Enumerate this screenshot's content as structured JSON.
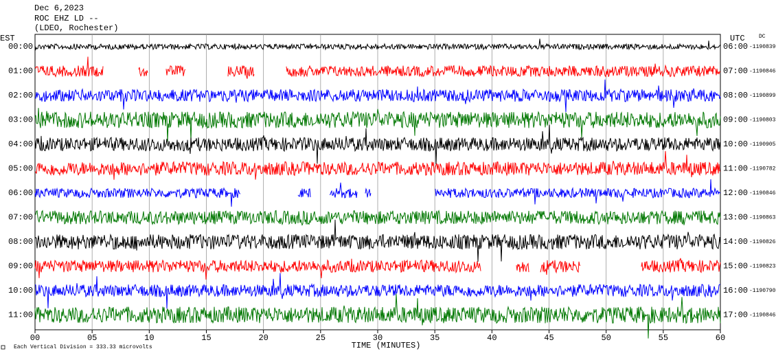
{
  "header": {
    "date": "Dec 6,2023",
    "station": "ROC EHZ LD --",
    "network": "(LDEO, Rochester)"
  },
  "left_zone": "EST",
  "right_zone": "UTC",
  "dc_label": "DC",
  "rows": [
    {
      "est": "00:00",
      "utc": "06:00",
      "offset": "-1190839"
    },
    {
      "est": "01:00",
      "utc": "07:00",
      "offset": "-1190846"
    },
    {
      "est": "02:00",
      "utc": "08:00",
      "offset": "-1190899"
    },
    {
      "est": "03:00",
      "utc": "09:00",
      "offset": "-1190803"
    },
    {
      "est": "04:00",
      "utc": "10:00",
      "offset": "-1190905"
    },
    {
      "est": "05:00",
      "utc": "11:00",
      "offset": "-1190782"
    },
    {
      "est": "06:00",
      "utc": "12:00",
      "offset": "-1190846"
    },
    {
      "est": "07:00",
      "utc": "13:00",
      "offset": "-1190863"
    },
    {
      "est": "08:00",
      "utc": "14:00",
      "offset": "-1190826"
    },
    {
      "est": "09:00",
      "utc": "15:00",
      "offset": "-1190823"
    },
    {
      "est": "10:00",
      "utc": "16:00",
      "offset": "-1190790"
    },
    {
      "est": "11:00",
      "utc": "17:00",
      "offset": "-1190846"
    }
  ],
  "x_ticks": [
    "00",
    "05",
    "10",
    "15",
    "20",
    "25",
    "30",
    "35",
    "40",
    "45",
    "50",
    "55",
    "60"
  ],
  "x_label": "TIME (MINUTES)",
  "footnote": "Each Vertical Division =  333.33 microvolts"
}
